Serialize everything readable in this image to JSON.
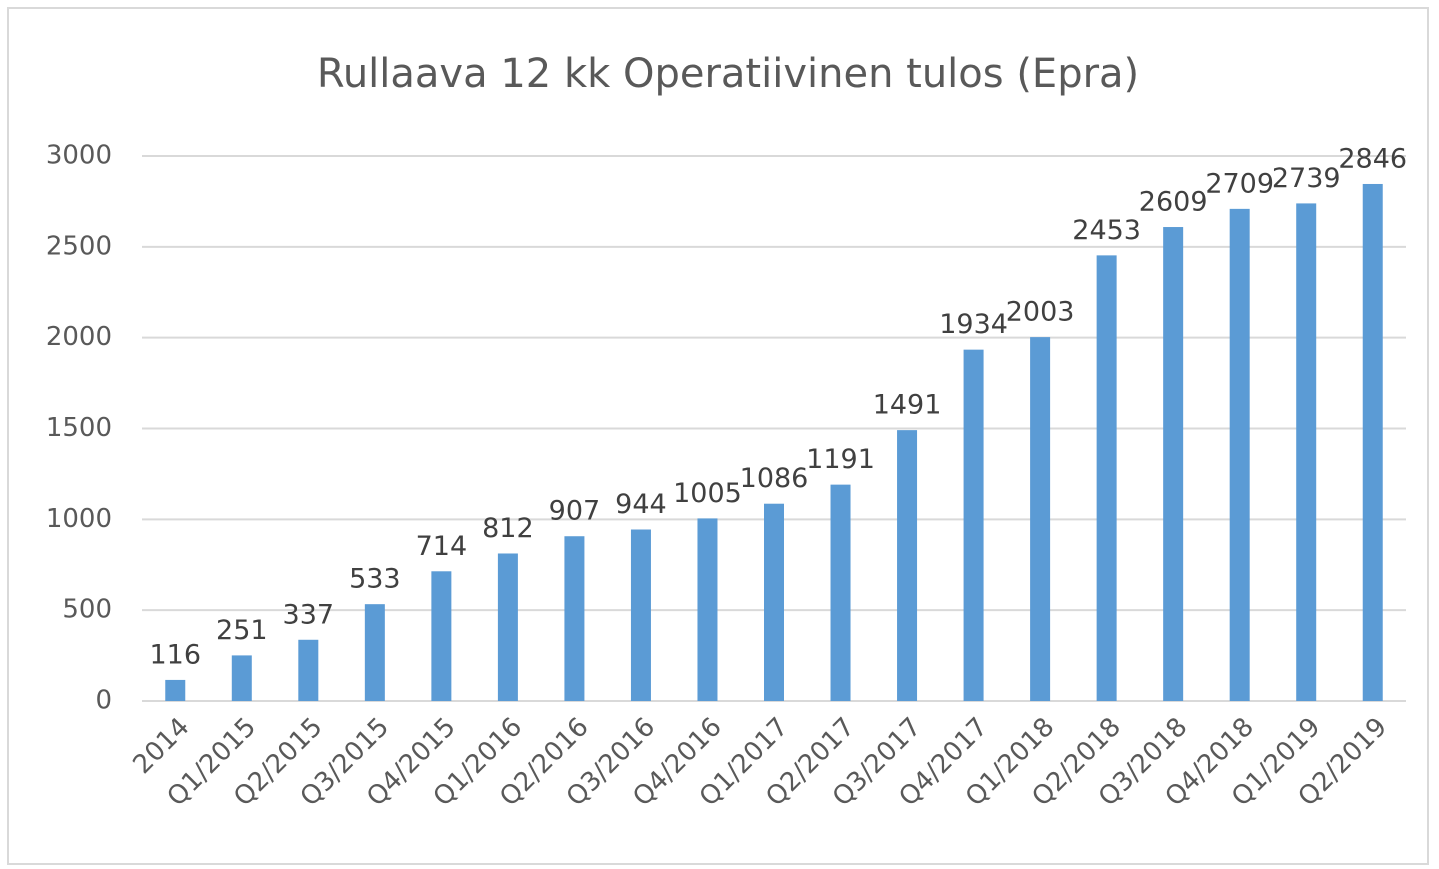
{
  "chart_data": {
    "type": "bar",
    "title": "Rullaava 12 kk Operatiivinen tulos (Epra)",
    "categories": [
      "2014",
      "Q1/2015",
      "Q2/2015",
      "Q3/2015",
      "Q4/2015",
      "Q1/2016",
      "Q2/2016",
      "Q3/2016",
      "Q4/2016",
      "Q1/2017",
      "Q2/2017",
      "Q3/2017",
      "Q4/2017",
      "Q1/2018",
      "Q2/2018",
      "Q3/2018",
      "Q4/2018",
      "Q1/2019",
      "Q2/2019"
    ],
    "values": [
      116,
      251,
      337,
      533,
      714,
      812,
      907,
      944,
      1005,
      1086,
      1191,
      1491,
      1934,
      2003,
      2453,
      2609,
      2709,
      2739,
      2846
    ],
    "color": "#5b9bd5",
    "ylim": [
      0,
      3000
    ],
    "yticks": [
      0,
      500,
      1000,
      1500,
      2000,
      2500,
      3000
    ],
    "grid": true
  }
}
